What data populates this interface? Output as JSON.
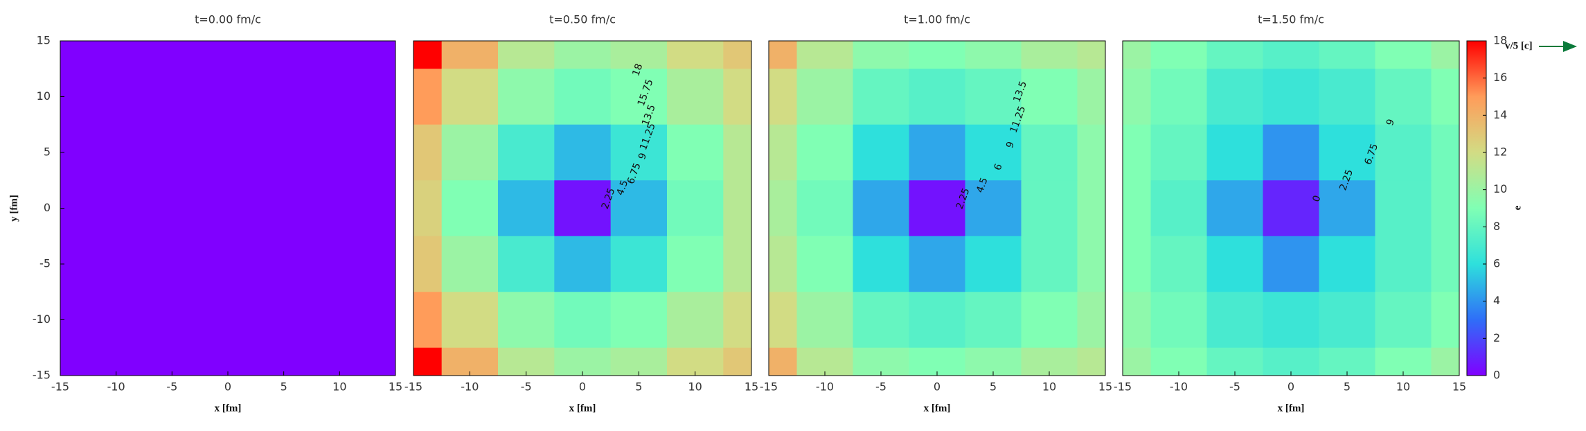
{
  "chart_data": [
    {
      "type": "heatmap",
      "title": "t=0.00 fm/c",
      "xlabel": "x [fm]",
      "ylabel": "y [fm]",
      "x": [
        -15,
        -10,
        -5,
        0,
        5,
        10,
        15
      ],
      "y": [
        15,
        10,
        5,
        0,
        -5,
        -10,
        -15
      ],
      "values": [
        [
          0,
          0,
          0,
          0,
          0,
          0,
          0
        ],
        [
          0,
          0,
          0,
          0,
          0,
          0,
          0
        ],
        [
          0,
          0,
          0,
          0,
          0,
          0,
          0
        ],
        [
          0,
          0,
          0,
          0,
          0,
          0,
          0
        ],
        [
          0,
          0,
          0,
          0,
          0,
          0,
          0
        ],
        [
          0,
          0,
          0,
          0,
          0,
          0,
          0
        ],
        [
          0,
          0,
          0,
          0,
          0,
          0,
          0
        ]
      ],
      "xlim": [
        -15,
        15
      ],
      "ylim": [
        -15,
        15
      ],
      "xticks": [
        -15,
        -10,
        -5,
        0,
        5,
        10,
        15
      ],
      "yticks": [
        -15,
        -10,
        -5,
        0,
        5,
        10,
        15
      ],
      "contour_labels": []
    },
    {
      "type": "heatmap",
      "title": "t=0.50 fm/c",
      "xlabel": "x [fm]",
      "x": [
        -15,
        -10,
        -5,
        0,
        5,
        10,
        15
      ],
      "y": [
        15,
        10,
        5,
        0,
        -5,
        -10,
        -15
      ],
      "values": [
        [
          18,
          14,
          11,
          10,
          10.5,
          12,
          13
        ],
        [
          15,
          12,
          9.5,
          8.5,
          9,
          10.5,
          12
        ],
        [
          13,
          10,
          7,
          5,
          6.5,
          9,
          11
        ],
        [
          12.5,
          9,
          5,
          0.5,
          5,
          8.5,
          11
        ],
        [
          13,
          10,
          7,
          5,
          6.5,
          9,
          11
        ],
        [
          15,
          12,
          9.5,
          8.5,
          9,
          10.5,
          12
        ],
        [
          18,
          14,
          11,
          10,
          10.5,
          12,
          13
        ]
      ],
      "xlim": [
        -15,
        15
      ],
      "ylim": [
        -15,
        15
      ],
      "xticks": [
        -15,
        -10,
        -5,
        0,
        5,
        10,
        15
      ],
      "contour_labels": [
        "2.25",
        "4.5",
        "6.75",
        "9",
        "11.25",
        "13.5",
        "15.75",
        "18"
      ]
    },
    {
      "type": "heatmap",
      "title": "t=1.00 fm/c",
      "xlabel": "x [fm]",
      "x": [
        -15,
        -10,
        -5,
        0,
        5,
        10,
        15
      ],
      "y": [
        15,
        10,
        5,
        0,
        -5,
        -10,
        -15
      ],
      "values": [
        [
          14,
          11,
          9.5,
          9,
          9.5,
          10.5,
          11
        ],
        [
          12,
          10,
          8,
          7.5,
          8,
          9,
          10
        ],
        [
          11,
          9,
          6,
          4.5,
          6,
          8,
          9.5
        ],
        [
          10.5,
          8.5,
          4.5,
          0.5,
          4.5,
          8,
          9.5
        ],
        [
          11,
          9,
          6,
          4.5,
          6,
          8,
          9.5
        ],
        [
          12,
          10,
          8,
          7.5,
          8,
          9,
          10
        ],
        [
          14,
          11,
          9.5,
          9,
          9.5,
          10.5,
          11
        ]
      ],
      "xlim": [
        -15,
        15
      ],
      "ylim": [
        -15,
        15
      ],
      "xticks": [
        -15,
        -10,
        -5,
        0,
        5,
        10,
        15
      ],
      "contour_labels": [
        "2.25",
        "4.5",
        "6",
        "9",
        "11.25",
        "13.5"
      ]
    },
    {
      "type": "heatmap",
      "title": "t=1.50 fm/c",
      "xlabel": "x [fm]",
      "x": [
        -15,
        -10,
        -5,
        0,
        5,
        10,
        15
      ],
      "y": [
        15,
        10,
        5,
        0,
        -5,
        -10,
        -15
      ],
      "values": [
        [
          10,
          9,
          8,
          7.5,
          8,
          9,
          10
        ],
        [
          9.5,
          8.5,
          7,
          6.5,
          7,
          8,
          9
        ],
        [
          9,
          8,
          6,
          4,
          6,
          7.5,
          8.5
        ],
        [
          9,
          7.5,
          4.5,
          1,
          4.5,
          7.5,
          8.5
        ],
        [
          9,
          8,
          6,
          4,
          6,
          7.5,
          8.5
        ],
        [
          9.5,
          8.5,
          7,
          6.5,
          7,
          8,
          9
        ],
        [
          10,
          9,
          8,
          7.5,
          8,
          9,
          10
        ]
      ],
      "xlim": [
        -15,
        15
      ],
      "ylim": [
        -15,
        15
      ],
      "xticks": [
        -15,
        -10,
        -5,
        0,
        5,
        10,
        15
      ],
      "contour_labels": [
        "0",
        "2.25",
        "6.75",
        "9"
      ]
    }
  ],
  "colorbar": {
    "label": "e",
    "clim": [
      0,
      18
    ],
    "ticks": [
      0,
      2,
      4,
      6,
      8,
      10,
      12,
      14,
      16,
      18
    ],
    "colors": [
      "#8000ff",
      "#2f6ef8",
      "#2ee0dc",
      "#80ffb4",
      "#d2dc84",
      "#ff9c5a",
      "#ff0000"
    ]
  },
  "vector_legend": "v/5 [c]"
}
